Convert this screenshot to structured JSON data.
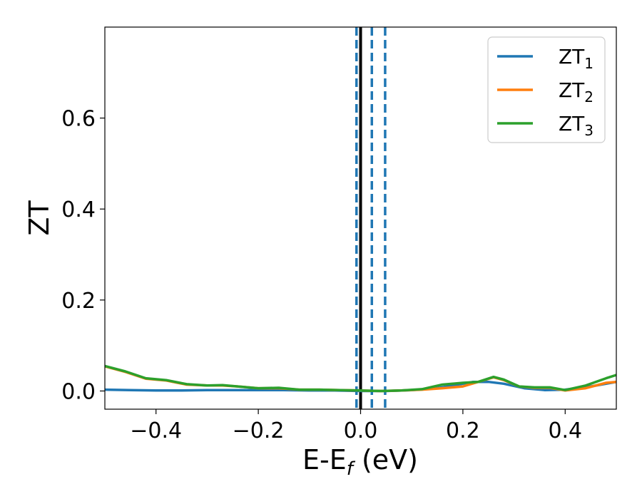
{
  "chart_data": {
    "type": "line",
    "title": "",
    "xlabel": {
      "main": "E-E",
      "sub": "f",
      "unit": " (eV)"
    },
    "ylabel": "ZT",
    "xlim": [
      -0.5,
      0.5
    ],
    "ylim": [
      -0.04,
      0.8
    ],
    "xticks": [
      -0.4,
      -0.2,
      0.0,
      0.2,
      0.4
    ],
    "xtick_labels": [
      "−0.4",
      "−0.2",
      "0.0",
      "0.2",
      "0.4"
    ],
    "yticks": [
      0.0,
      0.2,
      0.4,
      0.6
    ],
    "ytick_labels": [
      "0.0",
      "0.2",
      "0.4",
      "0.6"
    ],
    "grid": false,
    "legend_position": "top-right",
    "series": [
      {
        "name": "ZT",
        "name_sub": "1",
        "color": "#1f77b4",
        "x": [
          -0.5,
          -0.45,
          -0.4,
          -0.35,
          -0.3,
          -0.25,
          -0.2,
          -0.15,
          -0.1,
          -0.05,
          0.0,
          0.05,
          0.1,
          0.15,
          0.2,
          0.22,
          0.25,
          0.28,
          0.32,
          0.36,
          0.4,
          0.45,
          0.5
        ],
        "y": [
          0.003,
          0.002,
          0.001,
          0.001,
          0.002,
          0.002,
          0.002,
          0.002,
          0.001,
          0.001,
          0.0,
          0.0,
          0.002,
          0.006,
          0.016,
          0.02,
          0.02,
          0.016,
          0.006,
          0.002,
          0.003,
          0.01,
          0.02
        ]
      },
      {
        "name": "ZT",
        "name_sub": "2",
        "color": "#ff7f0e",
        "x": [
          -0.5,
          -0.46,
          -0.42,
          -0.38,
          -0.34,
          -0.3,
          -0.27,
          -0.24,
          -0.2,
          -0.16,
          -0.12,
          -0.08,
          -0.04,
          0.0,
          0.04,
          0.08,
          0.12,
          0.16,
          0.2,
          0.23,
          0.26,
          0.28,
          0.31,
          0.34,
          0.37,
          0.4,
          0.44,
          0.48,
          0.5
        ],
        "y": [
          0.054,
          0.042,
          0.027,
          0.023,
          0.014,
          0.012,
          0.012,
          0.01,
          0.006,
          0.006,
          0.003,
          0.003,
          0.002,
          0.001,
          0.0,
          0.001,
          0.003,
          0.006,
          0.01,
          0.02,
          0.03,
          0.024,
          0.01,
          0.007,
          0.007,
          0.001,
          0.006,
          0.018,
          0.02
        ]
      },
      {
        "name": "ZT",
        "name_sub": "3",
        "color": "#2ca02c",
        "x": [
          -0.5,
          -0.46,
          -0.42,
          -0.38,
          -0.34,
          -0.3,
          -0.27,
          -0.24,
          -0.2,
          -0.16,
          -0.12,
          -0.08,
          -0.04,
          0.0,
          0.04,
          0.08,
          0.12,
          0.16,
          0.2,
          0.23,
          0.26,
          0.28,
          0.31,
          0.34,
          0.37,
          0.4,
          0.44,
          0.48,
          0.5
        ],
        "y": [
          0.055,
          0.043,
          0.028,
          0.024,
          0.015,
          0.012,
          0.013,
          0.01,
          0.006,
          0.007,
          0.003,
          0.003,
          0.002,
          0.001,
          0.0,
          0.001,
          0.004,
          0.014,
          0.018,
          0.02,
          0.031,
          0.025,
          0.01,
          0.008,
          0.008,
          0.002,
          0.012,
          0.028,
          0.035
        ]
      }
    ],
    "vlines": [
      {
        "x": -0.008,
        "style": "dashed",
        "color": "#1f77b4"
      },
      {
        "x": 0.0,
        "style": "solid",
        "color": "#000000"
      },
      {
        "x": 0.022,
        "style": "dashed",
        "color": "#1f77b4"
      },
      {
        "x": 0.048,
        "style": "dashed",
        "color": "#1f77b4"
      }
    ]
  }
}
